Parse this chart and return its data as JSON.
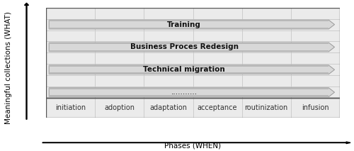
{
  "xlabel": "Phases (WHEN)",
  "ylabel": "Meaningful collections (WHAT)",
  "phases": [
    "initiation",
    "adoption",
    "adaptation",
    "acceptance",
    "routinization",
    "infusion"
  ],
  "arrow_labels": [
    "Training",
    "Business Proces Redesign",
    "Technical migration",
    "..........."
  ],
  "arrow_bold": [
    true,
    true,
    true,
    false
  ],
  "grid_color": "#c8c8c8",
  "bg_color": "#ebebeb",
  "arrow_face_light": "#d8d8d8",
  "arrow_face_dark": "#b8b8b8",
  "arrow_edge": "#999999",
  "outer_edge": "#555555",
  "n_cols": 6,
  "n_rows": 8,
  "fig_bg": "#ffffff",
  "label_fontsize": 7.0,
  "arrow_fontsize": 7.5,
  "axis_label_fontsize": 7.5
}
